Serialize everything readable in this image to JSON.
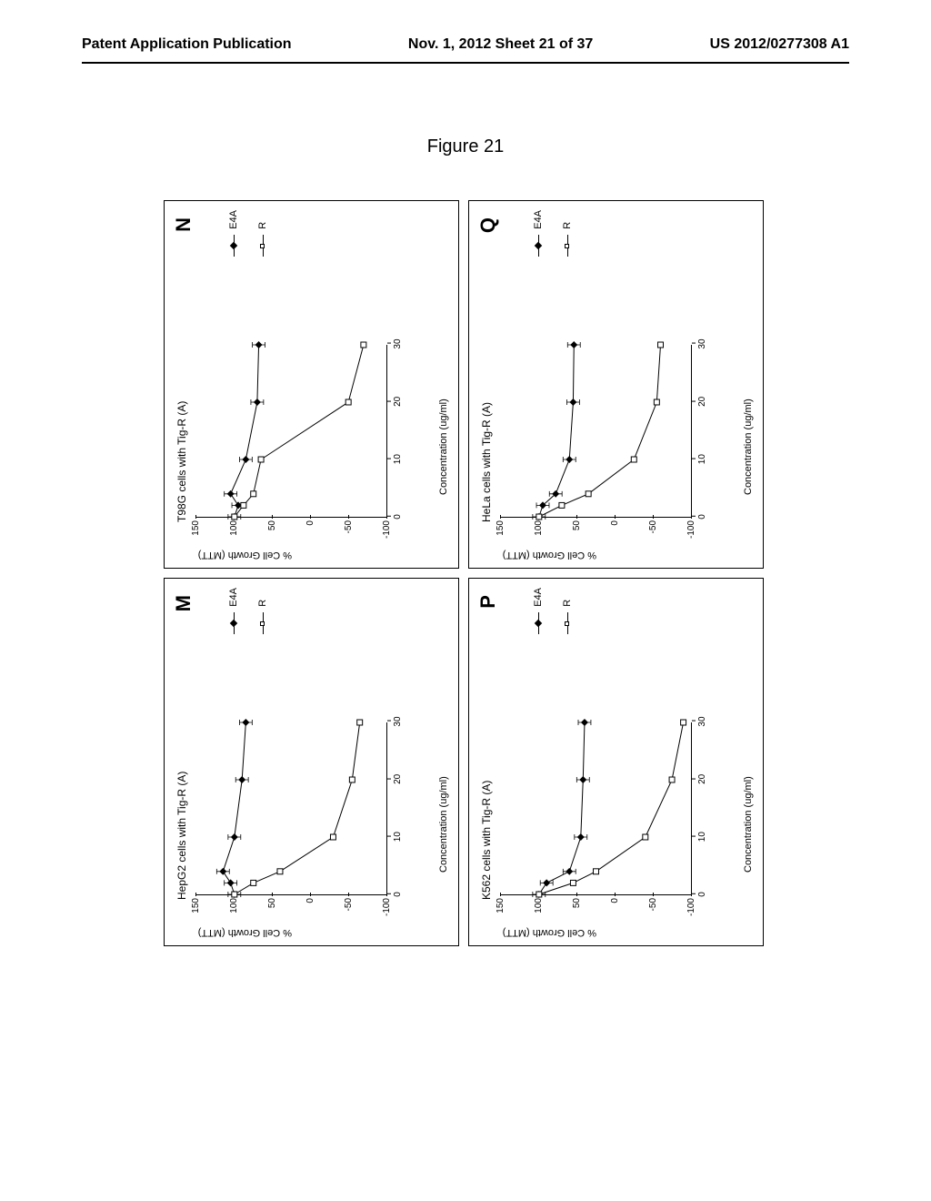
{
  "header": {
    "left": "Patent Application Publication",
    "center": "Nov. 1, 2012  Sheet 21 of 37",
    "right": "US 2012/0277308 A1"
  },
  "figure_title": "Figure 21",
  "axes": {
    "y_label": "% Cell Growth (MTT)",
    "x_label": "Concentration (ug/ml)",
    "y_ticks": [
      -100,
      -50,
      0,
      50,
      100,
      150
    ],
    "x_ticks": [
      0,
      10,
      20,
      30
    ],
    "ylim": [
      -100,
      150
    ],
    "xlim": [
      0,
      30
    ]
  },
  "legend_items": [
    {
      "label": "E4A",
      "marker": "filled-diamond"
    },
    {
      "label": "R",
      "marker": "open-square"
    }
  ],
  "colors": {
    "background": "#ffffff",
    "line": "#000000",
    "text": "#000000",
    "border": "#000000"
  },
  "panels": [
    {
      "id": "M",
      "title": "HepG2 cells with Tig-R (A)",
      "series": [
        {
          "name": "E4A",
          "marker": "filled-diamond",
          "points": [
            [
              0,
              100
            ],
            [
              2,
              105
            ],
            [
              4,
              115
            ],
            [
              10,
              100
            ],
            [
              20,
              90
            ],
            [
              30,
              85
            ]
          ]
        },
        {
          "name": "R",
          "marker": "open-square",
          "points": [
            [
              0,
              100
            ],
            [
              2,
              75
            ],
            [
              4,
              40
            ],
            [
              10,
              -30
            ],
            [
              20,
              -55
            ],
            [
              30,
              -65
            ]
          ]
        }
      ]
    },
    {
      "id": "N",
      "title": "T98G cells with Tig-R (A)",
      "series": [
        {
          "name": "E4A",
          "marker": "filled-diamond",
          "points": [
            [
              0,
              100
            ],
            [
              2,
              95
            ],
            [
              4,
              105
            ],
            [
              10,
              85
            ],
            [
              20,
              70
            ],
            [
              30,
              68
            ]
          ]
        },
        {
          "name": "R",
          "marker": "open-square",
          "points": [
            [
              0,
              100
            ],
            [
              2,
              88
            ],
            [
              4,
              75
            ],
            [
              10,
              65
            ],
            [
              20,
              -50
            ],
            [
              30,
              -70
            ]
          ]
        }
      ]
    },
    {
      "id": "P",
      "title": "K562 cells with Tig-R (A)",
      "series": [
        {
          "name": "E4A",
          "marker": "filled-diamond",
          "points": [
            [
              0,
              100
            ],
            [
              2,
              90
            ],
            [
              4,
              60
            ],
            [
              10,
              45
            ],
            [
              20,
              42
            ],
            [
              30,
              40
            ]
          ]
        },
        {
          "name": "R",
          "marker": "open-square",
          "points": [
            [
              0,
              100
            ],
            [
              2,
              55
            ],
            [
              4,
              25
            ],
            [
              10,
              -40
            ],
            [
              20,
              -75
            ],
            [
              30,
              -90
            ]
          ]
        }
      ]
    },
    {
      "id": "Q",
      "title": "HeLa cells with Tig-R (A)",
      "series": [
        {
          "name": "E4A",
          "marker": "filled-diamond",
          "points": [
            [
              0,
              100
            ],
            [
              2,
              95
            ],
            [
              4,
              78
            ],
            [
              10,
              60
            ],
            [
              20,
              55
            ],
            [
              30,
              54
            ]
          ]
        },
        {
          "name": "R",
          "marker": "open-square",
          "points": [
            [
              0,
              100
            ],
            [
              2,
              70
            ],
            [
              4,
              35
            ],
            [
              10,
              -25
            ],
            [
              20,
              -55
            ],
            [
              30,
              -60
            ]
          ]
        }
      ]
    }
  ]
}
